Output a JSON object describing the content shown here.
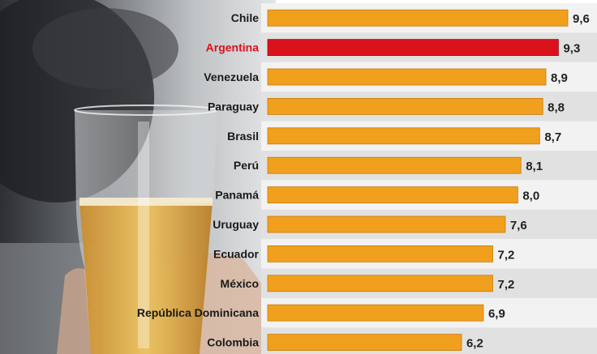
{
  "chart_data": {
    "type": "bar",
    "orientation": "horizontal",
    "categories": [
      "Chile",
      "Argentina",
      "Venezuela",
      "Paraguay",
      "Brasil",
      "Perú",
      "Panamá",
      "Uruguay",
      "Ecuador",
      "México",
      "República Dominicana",
      "Colombia"
    ],
    "values": [
      9.6,
      9.3,
      8.9,
      8.8,
      8.7,
      8.1,
      8.0,
      7.6,
      7.2,
      7.2,
      6.9,
      6.2
    ],
    "value_labels": [
      "9,6",
      "9,3",
      "8,9",
      "8,8",
      "8,7",
      "8,1",
      "8,0",
      "7,6",
      "7,2",
      "7,2",
      "6,9",
      "6,2"
    ],
    "highlight": "Argentina",
    "xlim": [
      0,
      9.6
    ],
    "grid": false,
    "colors": {
      "bar": "#f0a01c",
      "bar_edge": "#c77a0a",
      "highlight_bar": "#d9121c",
      "highlight_label": "#d9121c",
      "label": "#1a1a1a",
      "stripe_light": "#f2f2f2",
      "stripe_dark": "#e1e1e1"
    }
  }
}
